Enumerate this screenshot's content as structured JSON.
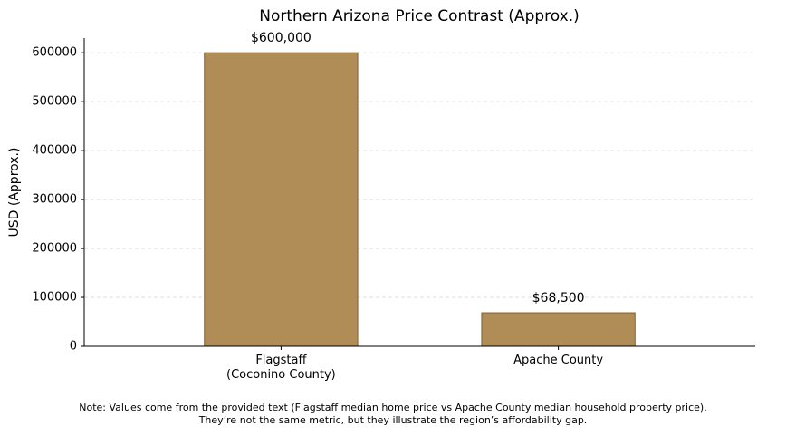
{
  "chart_data": {
    "type": "bar",
    "title": "Northern Arizona Price Contrast (Approx.)",
    "y_label": "USD (Approx.)",
    "categories": [
      "Flagstaff\n(Coconino County)",
      "Apache County"
    ],
    "values": [
      600000,
      68500
    ],
    "value_labels": [
      "$600,000",
      "$68,500"
    ],
    "color": "#b08d57",
    "edge_color": "#7a6238",
    "ylim": [
      0,
      630000
    ],
    "yticks": [
      0,
      100000,
      200000,
      300000,
      400000,
      500000,
      600000
    ],
    "grid": true,
    "note": "Note: Values come from the provided text (Flagstaff median home price vs Apache County median household property price).\nThey’re not the same metric, but they illustrate the region’s affordability gap."
  }
}
